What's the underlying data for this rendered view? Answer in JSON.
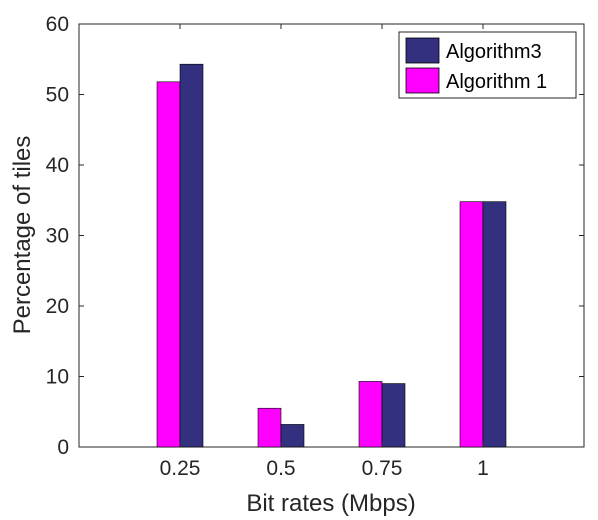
{
  "chart_data": {
    "type": "bar",
    "title": "",
    "xlabel": "Bit rates (Mbps)",
    "ylabel": "Percentage of tiles",
    "categories": [
      "0.25",
      "0.5",
      "0.75",
      "1"
    ],
    "ylim": [
      0,
      60
    ],
    "yticks": [
      "0",
      "10",
      "20",
      "30",
      "40",
      "50",
      "60"
    ],
    "grid": false,
    "legend_position": "top-right",
    "series": [
      {
        "name": "Algorithm3",
        "color": "#33307f",
        "values": [
          54.3,
          3.2,
          9.0,
          34.8
        ]
      },
      {
        "name": "Algorithm 1",
        "color": "#ff00ff",
        "values": [
          51.8,
          5.5,
          9.3,
          34.8
        ]
      }
    ]
  }
}
